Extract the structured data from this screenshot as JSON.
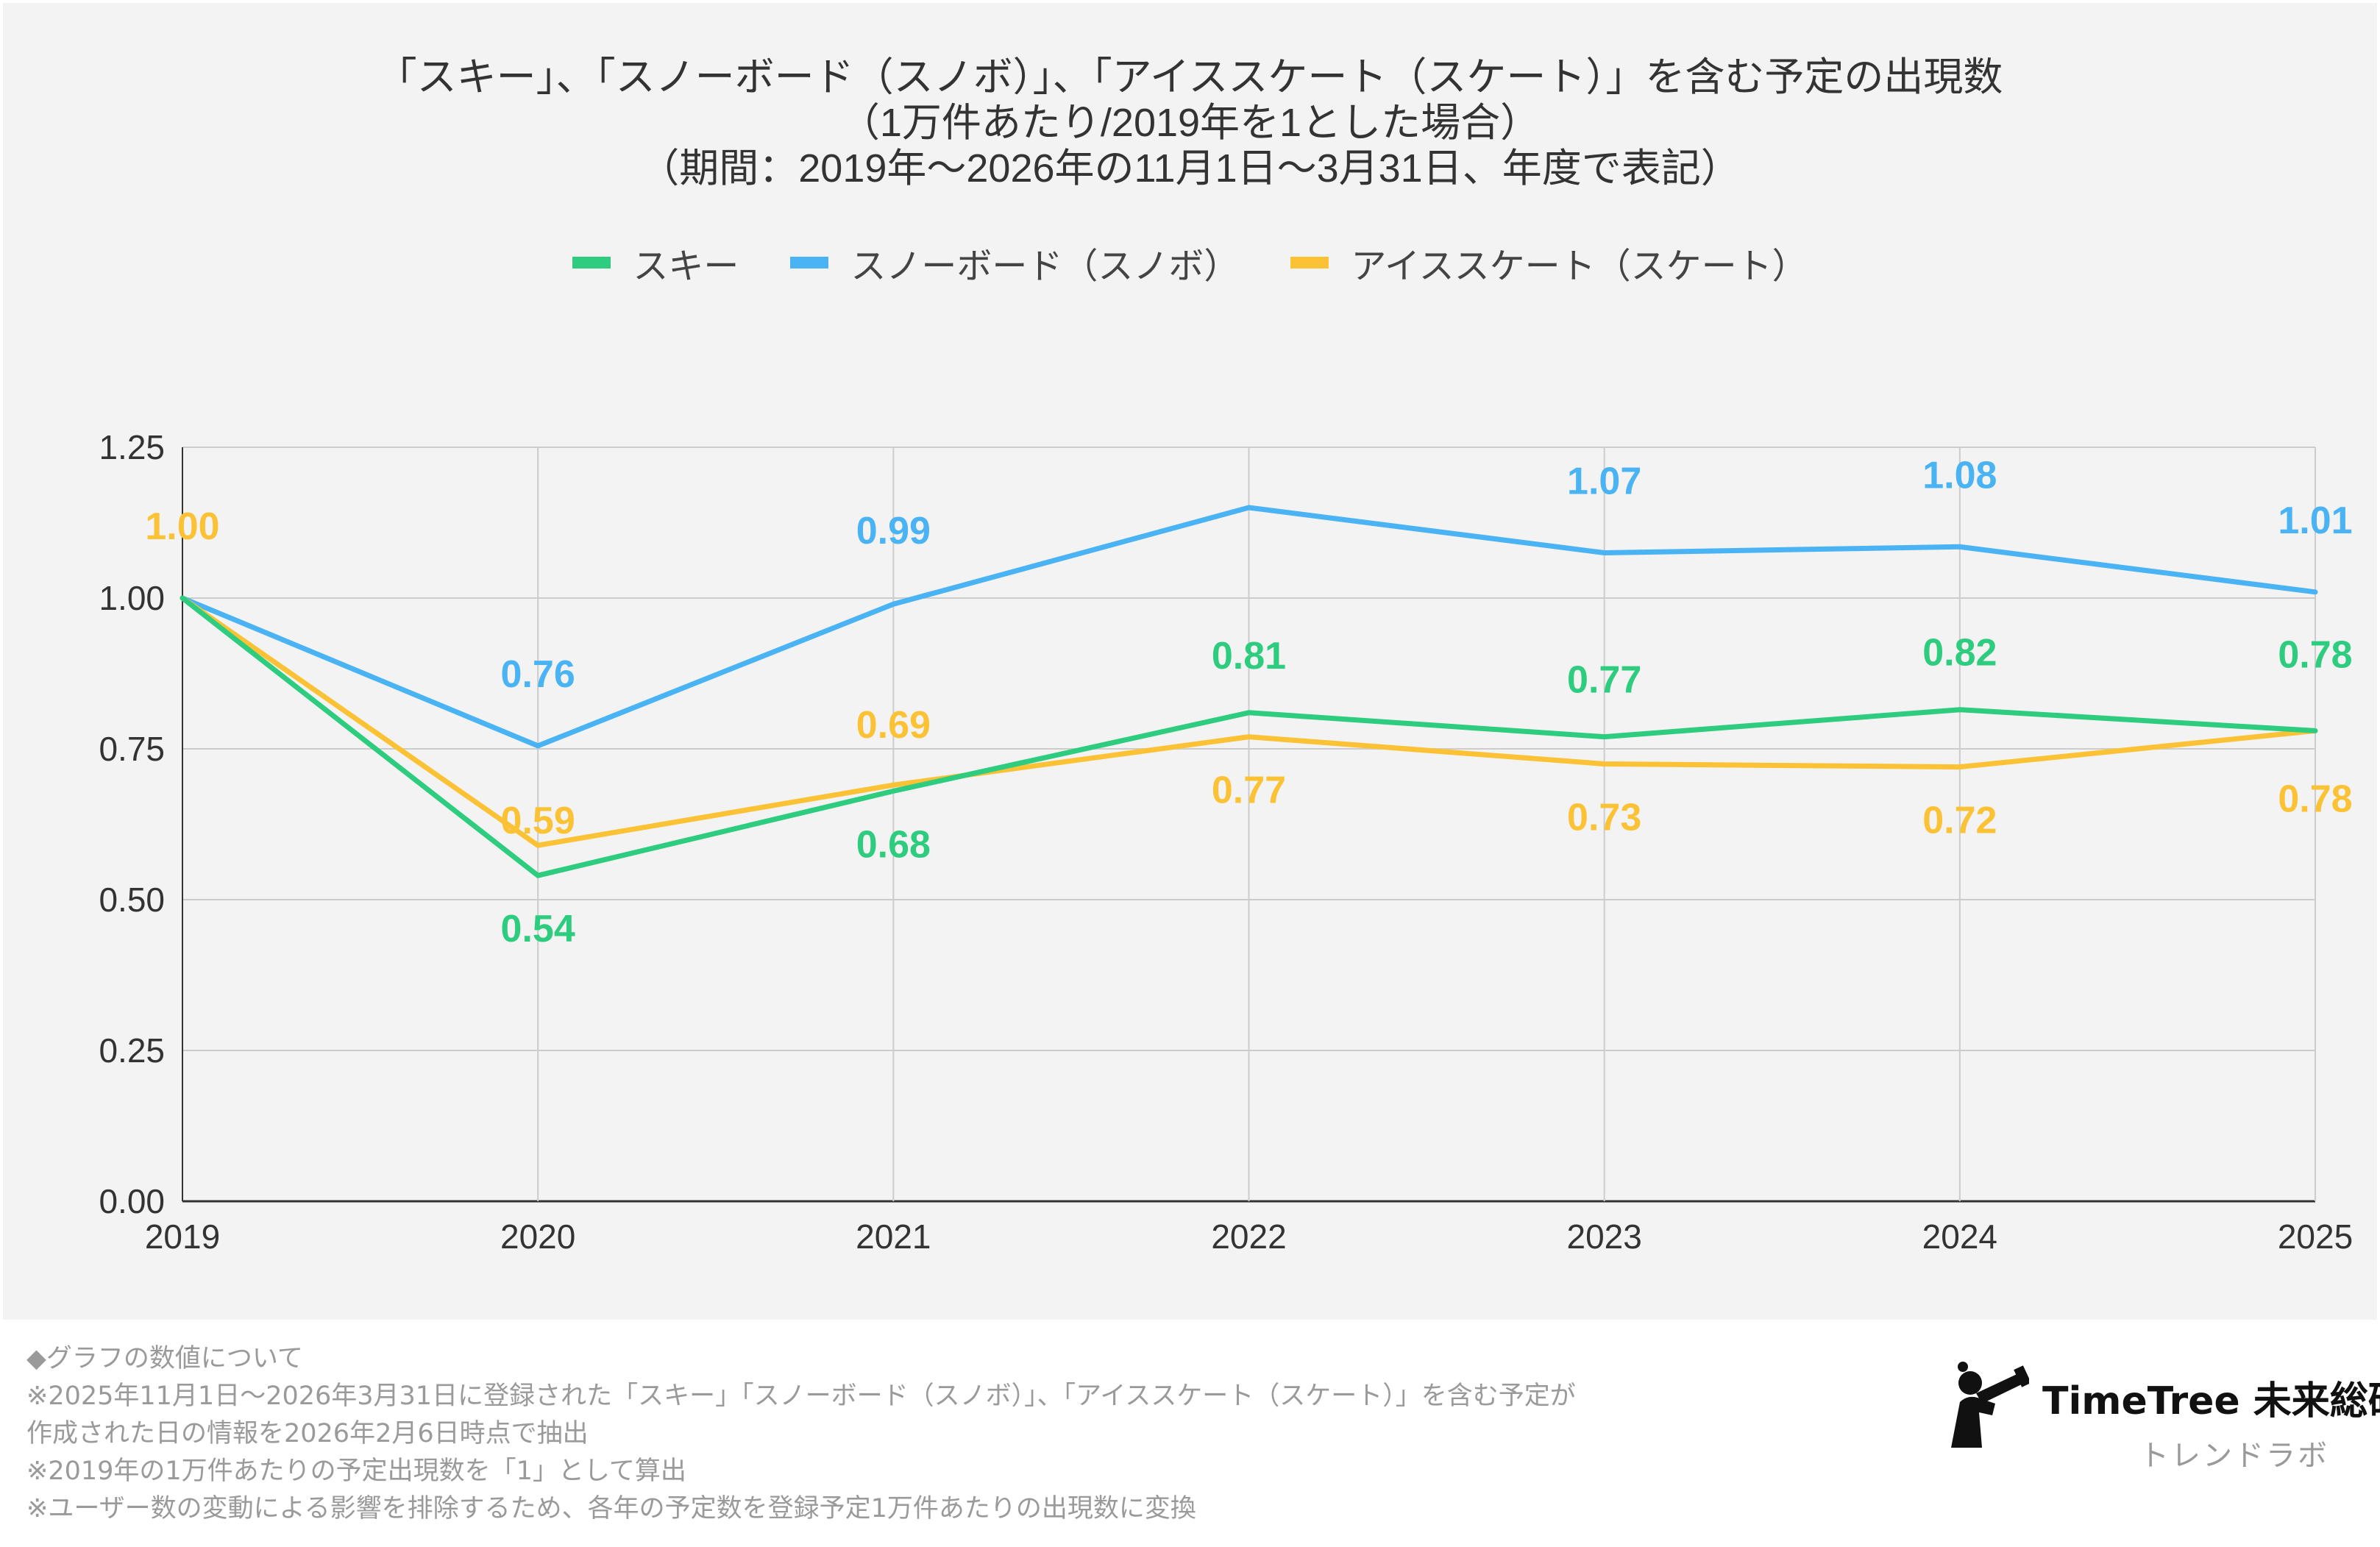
{
  "chart_data": {
    "type": "line",
    "title_lines": [
      "「スキー」、「スノーボード（スノボ）」、「アイススケート（スケート）」を含む予定の出現数",
      "（1万件あたり/2019年を1とした場合）",
      "（期間：2019年〜2026年の11月1日〜3月31日、年度で表記）"
    ],
    "categories": [
      "2019",
      "2020",
      "2021",
      "2022",
      "2023",
      "2024",
      "2025"
    ],
    "yticks": [
      "0.00",
      "0.25",
      "0.50",
      "0.75",
      "1.00",
      "1.25"
    ],
    "ylim": [
      0,
      1.25
    ],
    "grid": true,
    "legend_position": "top-center",
    "series": [
      {
        "name": "スキー",
        "color": "#2ecc7f",
        "values": [
          1.0,
          0.54,
          0.68,
          0.81,
          0.77,
          0.815,
          0.78
        ],
        "labels": [
          "",
          "0.54",
          "0.68",
          "0.81",
          "0.77",
          "0.82",
          "0.78"
        ]
      },
      {
        "name": "スノーボード（スノボ）",
        "color": "#4ab3f4",
        "values": [
          1.0,
          0.755,
          0.99,
          1.15,
          1.075,
          1.085,
          1.01
        ],
        "labels": [
          "",
          "0.76",
          "0.99",
          "",
          "1.07",
          "1.08",
          "1.01"
        ]
      },
      {
        "name": "アイススケート（スケート）",
        "color": "#fbc236",
        "values": [
          1.0,
          0.59,
          0.69,
          0.77,
          0.725,
          0.72,
          0.78
        ],
        "labels": [
          "1.00",
          "0.59",
          "0.69",
          "0.77",
          "0.73",
          "0.72",
          "0.78"
        ]
      }
    ]
  },
  "notes": [
    "◆グラフの数値について",
    "※2025年11月1日〜2026年3月31日に登録された「スキー」「スノーボード（スノボ）」、「アイススケート（スケート）」を含む予定が",
    "作成された日の情報を2026年2月6日時点で抽出",
    "※2019年の1万件あたりの予定出現数を「1」として算出",
    "※ユーザー数の変動による影響を排除するため、各年の予定数を登録予定1万件あたりの出現数に変換"
  ],
  "logo": {
    "name": "TimeTree 未来総研",
    "subtitle": "トレンドラボ",
    "icon": "person-with-telescope-icon"
  }
}
